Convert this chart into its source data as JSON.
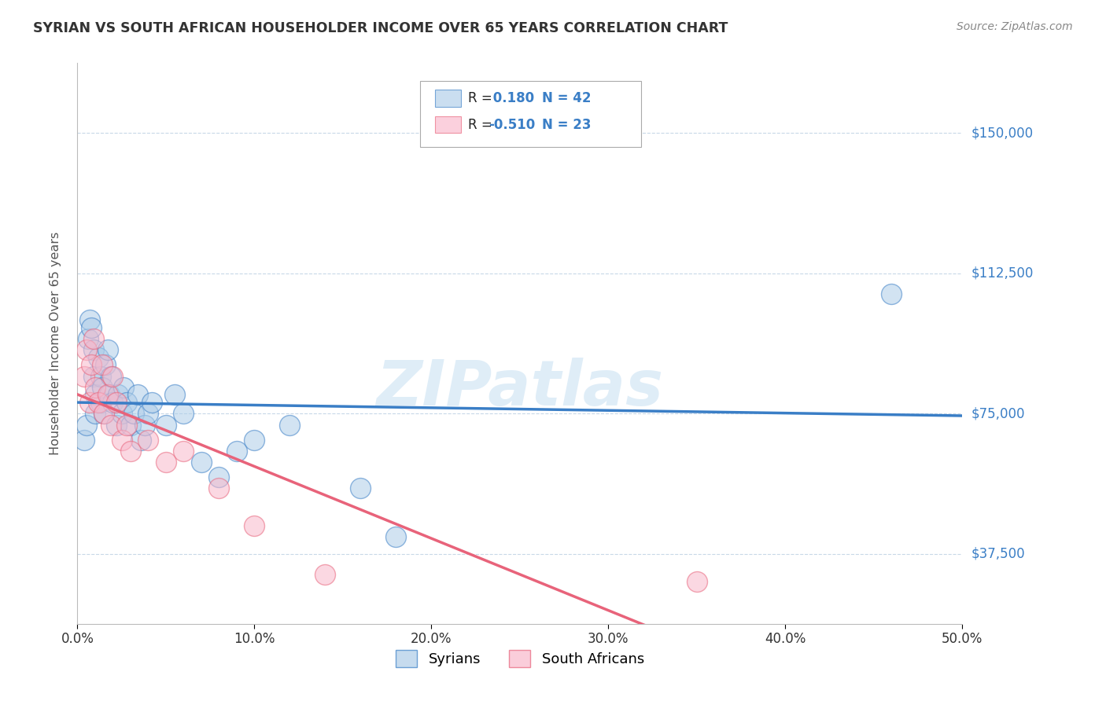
{
  "title": "SYRIAN VS SOUTH AFRICAN HOUSEHOLDER INCOME OVER 65 YEARS CORRELATION CHART",
  "source": "Source: ZipAtlas.com",
  "ylabel": "Householder Income Over 65 years",
  "xlabel_ticks": [
    "0.0%",
    "10.0%",
    "20.0%",
    "30.0%",
    "40.0%",
    "50.0%"
  ],
  "ytick_labels": [
    "$37,500",
    "$75,000",
    "$112,500",
    "$150,000"
  ],
  "ytick_values": [
    37500,
    75000,
    112500,
    150000
  ],
  "xlim": [
    0.0,
    0.5
  ],
  "ylim": [
    18750,
    168750
  ],
  "watermark_text": "ZIPatlas",
  "syrians_R": 0.18,
  "syrians_N": 42,
  "southafricans_R": -0.51,
  "southafricans_N": 23,
  "syrians_color": "#aecde8",
  "southafricans_color": "#f9b8cb",
  "syrian_line_color": "#3a7ec6",
  "southafrican_line_color": "#e8637a",
  "syrians_x": [
    0.004,
    0.005,
    0.006,
    0.007,
    0.008,
    0.009,
    0.009,
    0.01,
    0.01,
    0.012,
    0.013,
    0.013,
    0.014,
    0.015,
    0.016,
    0.017,
    0.018,
    0.019,
    0.02,
    0.022,
    0.023,
    0.025,
    0.026,
    0.028,
    0.03,
    0.032,
    0.034,
    0.036,
    0.038,
    0.04,
    0.042,
    0.05,
    0.055,
    0.06,
    0.07,
    0.08,
    0.09,
    0.1,
    0.12,
    0.16,
    0.18,
    0.46
  ],
  "syrians_y": [
    68000,
    72000,
    95000,
    100000,
    98000,
    85000,
    92000,
    75000,
    80000,
    90000,
    85000,
    78000,
    82000,
    75000,
    88000,
    92000,
    80000,
    85000,
    78000,
    72000,
    80000,
    75000,
    82000,
    78000,
    72000,
    75000,
    80000,
    68000,
    72000,
    75000,
    78000,
    72000,
    80000,
    75000,
    62000,
    58000,
    65000,
    68000,
    72000,
    55000,
    42000,
    107000
  ],
  "southafricans_x": [
    0.004,
    0.005,
    0.007,
    0.008,
    0.009,
    0.01,
    0.012,
    0.014,
    0.015,
    0.017,
    0.019,
    0.02,
    0.022,
    0.025,
    0.028,
    0.03,
    0.04,
    0.05,
    0.06,
    0.08,
    0.1,
    0.14,
    0.35
  ],
  "southafricans_y": [
    85000,
    92000,
    78000,
    88000,
    95000,
    82000,
    78000,
    88000,
    75000,
    80000,
    72000,
    85000,
    78000,
    68000,
    72000,
    65000,
    68000,
    62000,
    65000,
    55000,
    45000,
    32000,
    30000
  ],
  "background_color": "#ffffff",
  "plot_bg_color": "#ffffff",
  "grid_color": "#c8d8e8",
  "title_color": "#333333",
  "axis_label_color": "#555555",
  "tick_color_right": "#3a7ec6",
  "source_color": "#888888",
  "legend_R_color": "#3a7ec6"
}
